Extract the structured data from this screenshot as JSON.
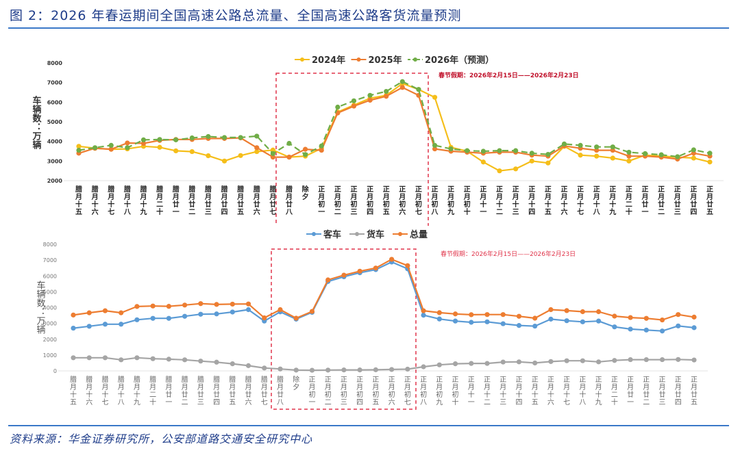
{
  "figure": {
    "title": "图 2：2026 年春运期间全国高速公路总流量、全国高速公路客货流量预测",
    "source": "资料来源：华金证券研究所，公安部道路交通安全研究中心"
  },
  "colors": {
    "title_blue": "#1f3d8a",
    "rule_blue": "#3a78c8",
    "y2024": "#f5be1a",
    "y2025": "#ed7d31",
    "y2026": "#70ad47",
    "passenger": "#5b9bd5",
    "freight": "#a5a5a5",
    "total": "#ed7d31",
    "holiday_box": "#e0344a"
  },
  "chart_data": [
    {
      "type": "line",
      "title": "",
      "ylabel": "车辆数：万辆",
      "xlabel": "",
      "ylim": [
        2000,
        8000
      ],
      "yticks": [
        2000,
        3000,
        4000,
        5000,
        6000,
        7000,
        8000
      ],
      "grid": false,
      "legend_position": "top",
      "annotation": "春节假期：2026年2月15日——2026年2月23日",
      "highlight_range": [
        "腊月廿八",
        "正月初七"
      ],
      "categories": [
        "腊月十五",
        "腊月十六",
        "腊月十七",
        "腊月十八",
        "腊月十九",
        "腊月二十",
        "腊月廿一",
        "腊月廿二",
        "腊月廿三",
        "腊月廿四",
        "腊月廿五",
        "腊月廿六",
        "腊月廿七",
        "腊月廿八",
        "除夕",
        "正月初一",
        "正月初二",
        "正月初三",
        "正月初四",
        "正月初五",
        "正月初六",
        "正月初七",
        "正月初八",
        "正月初九",
        "正月初十",
        "正月十一",
        "正月十二",
        "正月十三",
        "正月十四",
        "正月十五",
        "正月十六",
        "正月十七",
        "正月十八",
        "正月十九",
        "正月二十",
        "正月廿一",
        "正月廿二",
        "正月廿三",
        "正月廿四",
        "正月廿五"
      ],
      "series": [
        {
          "name": "2024年",
          "style": "solid",
          "values": [
            3750,
            3650,
            3600,
            3620,
            3750,
            3700,
            3520,
            3480,
            3270,
            3000,
            3280,
            3480,
            3560,
            3200,
            3250,
            3650,
            5500,
            5850,
            6200,
            6350,
            6950,
            6650,
            6250,
            3700,
            3500,
            2950,
            2500,
            2600,
            3000,
            2900,
            3750,
            3300,
            3250,
            3150,
            3000,
            3300,
            3250,
            3200,
            3150,
            2950
          ]
        },
        {
          "name": "2025年",
          "style": "solid",
          "values": [
            3400,
            3650,
            3600,
            3920,
            3900,
            4050,
            4100,
            4100,
            4150,
            4150,
            4180,
            3680,
            3200,
            3200,
            3600,
            3550,
            5450,
            5800,
            6100,
            6300,
            6750,
            6350,
            3620,
            3500,
            3450,
            3400,
            3450,
            3450,
            3300,
            3250,
            3770,
            3650,
            3550,
            3550,
            3250,
            3250,
            3200,
            3100,
            3400,
            3250
          ]
        },
        {
          "name": "2026年（预测）",
          "style": "dashed",
          "values": [
            3550,
            3680,
            3800,
            3680,
            4080,
            4100,
            4080,
            4180,
            4250,
            4200,
            4200,
            4270,
            3380,
            3900,
            3330,
            3770,
            5750,
            6070,
            6350,
            6550,
            7050,
            6650,
            3800,
            3620,
            3530,
            3500,
            3530,
            3530,
            3400,
            3340,
            3870,
            3800,
            3720,
            3720,
            3450,
            3380,
            3320,
            3220,
            3570,
            3400
          ]
        }
      ]
    },
    {
      "type": "line",
      "title": "",
      "ylabel": "车辆数：万辆",
      "xlabel": "",
      "ylim": [
        0,
        8000
      ],
      "yticks": [
        0,
        1000,
        2000,
        3000,
        4000,
        5000,
        6000,
        7000,
        8000
      ],
      "grid": false,
      "legend_position": "top",
      "annotation": "春节假期：2026年2月15日——2026年2月23日",
      "highlight_range": [
        "腊月廿八",
        "正月初七"
      ],
      "categories": [
        "腊月十五",
        "腊月十六",
        "腊月十七",
        "腊月十八",
        "腊月十九",
        "腊月二十",
        "腊月廿一",
        "腊月廿二",
        "腊月廿三",
        "腊月廿四",
        "腊月廿五",
        "腊月廿六",
        "腊月廿七",
        "腊月廿八",
        "除夕",
        "正月初一",
        "正月初二",
        "正月初三",
        "正月初四",
        "正月初五",
        "正月初六",
        "正月初七",
        "正月初八",
        "正月初九",
        "正月初十",
        "正月十一",
        "正月十二",
        "正月十三",
        "正月十四",
        "正月十五",
        "正月十六",
        "正月十七",
        "正月十八",
        "正月十九",
        "正月二十",
        "正月廿一",
        "正月廿二",
        "正月廿三",
        "正月廿四",
        "正月廿五"
      ],
      "series": [
        {
          "name": "客车",
          "values": [
            2700,
            2820,
            2950,
            2950,
            3230,
            3320,
            3320,
            3450,
            3580,
            3600,
            3720,
            3870,
            3150,
            3730,
            3270,
            3700,
            5650,
            5950,
            6200,
            6400,
            6880,
            6450,
            3520,
            3280,
            3150,
            3070,
            3100,
            2980,
            2870,
            2830,
            3270,
            3170,
            3100,
            3150,
            2780,
            2640,
            2580,
            2520,
            2840,
            2730
          ]
        },
        {
          "name": "货车",
          "values": [
            830,
            830,
            830,
            700,
            830,
            770,
            740,
            700,
            620,
            550,
            450,
            330,
            180,
            120,
            50,
            40,
            50,
            60,
            60,
            70,
            90,
            110,
            260,
            380,
            450,
            470,
            470,
            560,
            570,
            500,
            590,
            640,
            640,
            570,
            660,
            710,
            710,
            710,
            720,
            690
          ]
        },
        {
          "name": "总量",
          "values": [
            3530,
            3670,
            3800,
            3670,
            4070,
            4100,
            4080,
            4160,
            4250,
            4200,
            4220,
            4230,
            3350,
            3870,
            3330,
            3760,
            5750,
            6050,
            6300,
            6500,
            7050,
            6650,
            3800,
            3680,
            3600,
            3550,
            3560,
            3560,
            3450,
            3330,
            3870,
            3810,
            3740,
            3740,
            3460,
            3370,
            3320,
            3220,
            3560,
            3400
          ]
        }
      ]
    }
  ]
}
